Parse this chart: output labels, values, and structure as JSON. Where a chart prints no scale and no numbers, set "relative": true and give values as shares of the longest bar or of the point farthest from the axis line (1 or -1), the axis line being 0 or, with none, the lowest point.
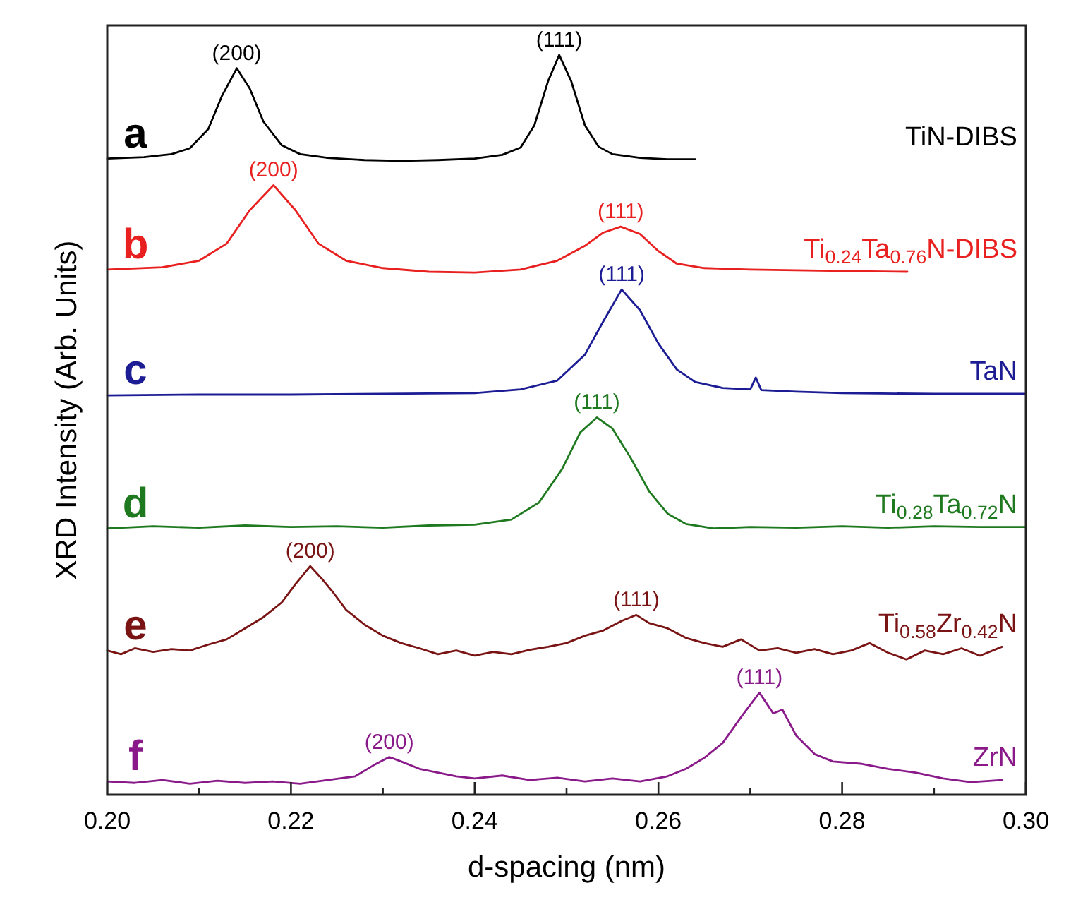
{
  "chart_data": {
    "type": "line",
    "relative": true,
    "xlabel": "d-spacing (nm)",
    "ylabel": "XRD Intensity (Arb. Units)",
    "xlim": [
      0.2,
      0.3
    ],
    "xticks": [
      {
        "value": 0.2,
        "label": "0.20"
      },
      {
        "value": 0.21,
        "label": null
      },
      0.22,
      {
        "value": 0.23,
        "label": null
      },
      0.24,
      {
        "value": 0.25,
        "label": null
      },
      0.26,
      {
        "value": 0.27,
        "label": null
      },
      0.28,
      {
        "value": 0.29,
        "label": null
      },
      {
        "value": 0.3,
        "label": "0.30"
      }
    ],
    "tick_labels": "x",
    "grid": false,
    "legend": false,
    "marker": "none",
    "line_style": "solid",
    "series": [
      {
        "name": "TiN-DIBS",
        "color": "#000000",
        "x": [
          0.2,
          0.204,
          0.207,
          0.209,
          0.211,
          0.2125,
          0.2141,
          0.2155,
          0.217,
          0.219,
          0.221,
          0.224,
          0.228,
          0.232,
          0.236,
          0.24,
          0.243,
          0.245,
          0.2465,
          0.248,
          0.2492,
          0.2505,
          0.252,
          0.2535,
          0.255,
          0.258,
          0.261,
          0.264
        ],
        "values": [
          0.86,
          0.862,
          0.866,
          0.874,
          0.9,
          0.945,
          0.982,
          0.955,
          0.91,
          0.878,
          0.866,
          0.861,
          0.858,
          0.857,
          0.858,
          0.86,
          0.865,
          0.875,
          0.905,
          0.965,
          1.0,
          0.965,
          0.905,
          0.876,
          0.866,
          0.861,
          0.859,
          0.859
        ]
      },
      {
        "name": "Ti$_{0.24}$Ta$_{0.76}$N-DIBS",
        "color": "#e8201f",
        "x": [
          0.2,
          0.206,
          0.21,
          0.213,
          0.2155,
          0.2181,
          0.2205,
          0.223,
          0.226,
          0.23,
          0.235,
          0.24,
          0.245,
          0.249,
          0.252,
          0.254,
          0.2559,
          0.258,
          0.26,
          0.262,
          0.265,
          0.27,
          0.275,
          0.28,
          0.2871
        ],
        "values": [
          0.71,
          0.713,
          0.722,
          0.745,
          0.79,
          0.824,
          0.79,
          0.745,
          0.722,
          0.712,
          0.707,
          0.706,
          0.71,
          0.722,
          0.742,
          0.76,
          0.768,
          0.758,
          0.735,
          0.718,
          0.712,
          0.71,
          0.709,
          0.708,
          0.707
        ]
      },
      {
        "name": "TaN",
        "color": "#1c1c94",
        "x": [
          0.2,
          0.21,
          0.22,
          0.23,
          0.24,
          0.245,
          0.249,
          0.252,
          0.254,
          0.256,
          0.258,
          0.26,
          0.262,
          0.264,
          0.267,
          0.27,
          0.2706,
          0.2712,
          0.275,
          0.28,
          0.29,
          0.3
        ],
        "values": [
          0.54,
          0.541,
          0.541,
          0.542,
          0.543,
          0.548,
          0.56,
          0.595,
          0.64,
          0.683,
          0.655,
          0.61,
          0.575,
          0.558,
          0.55,
          0.548,
          0.564,
          0.547,
          0.545,
          0.543,
          0.542,
          0.542
        ]
      },
      {
        "name": "Ti$_{0.28}$Ta$_{0.72}$N",
        "color": "#1f7a1f",
        "x": [
          0.2,
          0.205,
          0.21,
          0.215,
          0.22,
          0.225,
          0.23,
          0.235,
          0.24,
          0.244,
          0.247,
          0.2495,
          0.2515,
          0.2533,
          0.255,
          0.257,
          0.259,
          0.261,
          0.263,
          0.266,
          0.27,
          0.275,
          0.28,
          0.285,
          0.29,
          0.295,
          0.3
        ],
        "values": [
          0.36,
          0.363,
          0.361,
          0.364,
          0.362,
          0.363,
          0.361,
          0.364,
          0.365,
          0.372,
          0.395,
          0.44,
          0.49,
          0.51,
          0.495,
          0.455,
          0.41,
          0.38,
          0.366,
          0.36,
          0.362,
          0.361,
          0.363,
          0.361,
          0.363,
          0.362,
          0.362
        ]
      },
      {
        "name": "Ti$_{0.58}$Zr$_{0.42}$N",
        "color": "#7a1414",
        "x": [
          0.2,
          0.2015,
          0.203,
          0.205,
          0.207,
          0.209,
          0.211,
          0.213,
          0.215,
          0.217,
          0.219,
          0.2205,
          0.2221,
          0.2235,
          0.2245,
          0.226,
          0.228,
          0.23,
          0.232,
          0.234,
          0.236,
          0.238,
          0.24,
          0.242,
          0.244,
          0.246,
          0.248,
          0.25,
          0.252,
          0.254,
          0.256,
          0.2576,
          0.259,
          0.261,
          0.263,
          0.265,
          0.267,
          0.269,
          0.271,
          0.273,
          0.275,
          0.277,
          0.279,
          0.281,
          0.283,
          0.285,
          0.287,
          0.289,
          0.291,
          0.293,
          0.295,
          0.2974
        ],
        "values": [
          0.195,
          0.19,
          0.198,
          0.193,
          0.197,
          0.195,
          0.203,
          0.21,
          0.225,
          0.24,
          0.26,
          0.285,
          0.309,
          0.29,
          0.275,
          0.25,
          0.23,
          0.215,
          0.205,
          0.198,
          0.19,
          0.195,
          0.188,
          0.193,
          0.19,
          0.196,
          0.2,
          0.205,
          0.215,
          0.222,
          0.235,
          0.243,
          0.232,
          0.225,
          0.212,
          0.205,
          0.2,
          0.21,
          0.195,
          0.198,
          0.192,
          0.197,
          0.19,
          0.195,
          0.205,
          0.192,
          0.183,
          0.195,
          0.19,
          0.198,
          0.188,
          0.2
        ]
      },
      {
        "name": "ZrN",
        "color": "#8a1a8a",
        "x": [
          0.2,
          0.203,
          0.206,
          0.209,
          0.212,
          0.215,
          0.218,
          0.221,
          0.224,
          0.227,
          0.229,
          0.2307,
          0.232,
          0.234,
          0.236,
          0.238,
          0.24,
          0.243,
          0.246,
          0.249,
          0.252,
          0.255,
          0.258,
          0.261,
          0.263,
          0.265,
          0.267,
          0.269,
          0.271,
          0.2725,
          0.2735,
          0.275,
          0.277,
          0.279,
          0.282,
          0.285,
          0.288,
          0.291,
          0.294,
          0.2974
        ],
        "values": [
          0.018,
          0.016,
          0.02,
          0.015,
          0.019,
          0.016,
          0.018,
          0.015,
          0.02,
          0.025,
          0.04,
          0.051,
          0.045,
          0.035,
          0.03,
          0.025,
          0.022,
          0.026,
          0.02,
          0.023,
          0.018,
          0.022,
          0.018,
          0.025,
          0.035,
          0.05,
          0.07,
          0.105,
          0.138,
          0.11,
          0.115,
          0.08,
          0.055,
          0.045,
          0.042,
          0.035,
          0.03,
          0.022,
          0.017,
          0.02
        ]
      }
    ],
    "annotations": [
      "a",
      "b",
      "c",
      "d",
      "e",
      "f",
      {
        "text": "(200)",
        "x": 0.2141,
        "y": 0.982
      },
      {
        "text": "(111)",
        "x": 0.2492,
        "y": 1.0
      },
      {
        "text": "(200)",
        "x": 0.2181,
        "y": 0.824
      },
      {
        "text": "(111)",
        "x": 0.2559,
        "y": 0.768
      },
      {
        "text": "(111)",
        "x": 0.256,
        "y": 0.683
      },
      {
        "text": "(111)",
        "x": 0.2533,
        "y": 0.51
      },
      {
        "text": "(200)",
        "x": 0.2221,
        "y": 0.309
      },
      {
        "text": "(111)",
        "x": 0.2576,
        "y": 0.243
      },
      {
        "text": "(200)",
        "x": 0.2307,
        "y": 0.051
      },
      {
        "text": "(111)",
        "x": 0.271,
        "y": 0.138
      }
    ]
  }
}
